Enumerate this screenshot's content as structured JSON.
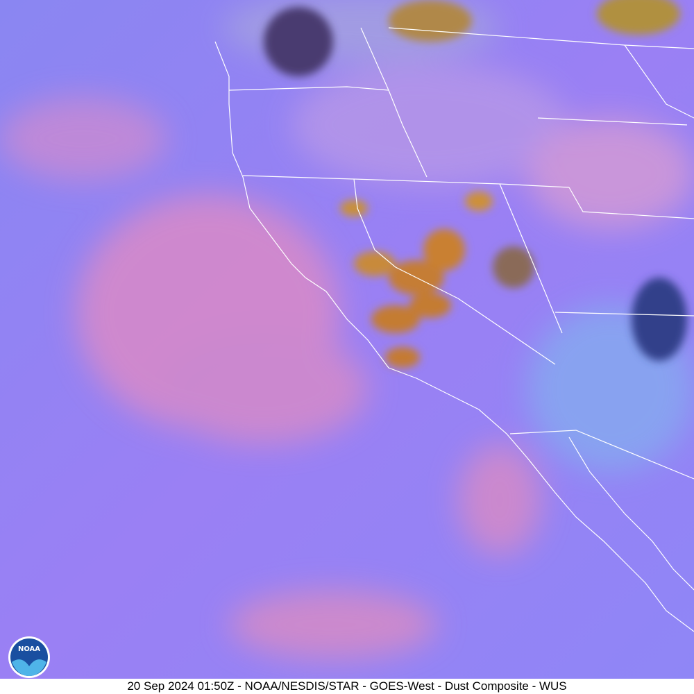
{
  "caption": "20 Sep 2024 01:50Z - NOAA/NESDIS/STAR - GOES-West - Dust Composite - WUS",
  "logo": {
    "label": "NOAA"
  }
}
